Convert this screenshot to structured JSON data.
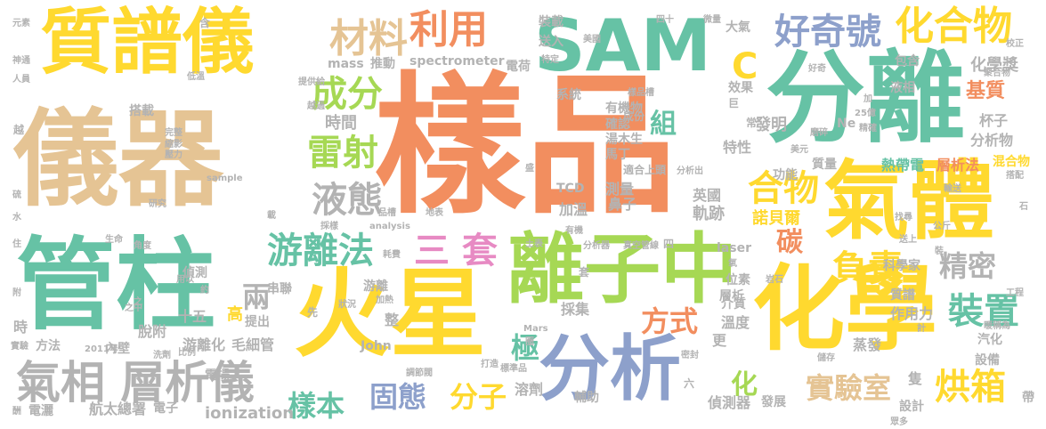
{
  "title": "SAM word cloud",
  "palette": {
    "orange": "#f28e5f",
    "green": "#66c2a5",
    "blue": "#8da0cb",
    "pink": "#e78ac3",
    "lime": "#a6d854",
    "yellow": "#ffd92f",
    "tan": "#e5c494",
    "gray": "#b3b3b3"
  },
  "words": [
    {
      "id": "w1",
      "text": "樣品",
      "color": "#f28e5f"
    },
    {
      "id": "w2",
      "text": "儀器",
      "color": "#e5c494"
    },
    {
      "id": "w3",
      "text": "質譜儀",
      "color": "#ffd92f"
    },
    {
      "id": "w4",
      "text": "分離",
      "color": "#66c2a5"
    },
    {
      "id": "w5",
      "text": "SAM",
      "color": "#66c2a5"
    },
    {
      "id": "w6",
      "text": "管柱",
      "color": "#66c2a5"
    },
    {
      "id": "w7",
      "text": "火星",
      "color": "#ffd92f"
    },
    {
      "id": "w8",
      "text": "化學",
      "color": "#ffd92f"
    },
    {
      "id": "w9",
      "text": "氣體",
      "color": "#ffd92f"
    },
    {
      "id": "w10",
      "text": "離子中",
      "color": "#a6d854"
    },
    {
      "id": "w11",
      "text": "分析",
      "color": "#8da0cb"
    },
    {
      "id": "w12",
      "text": "氣相 層析儀",
      "color": "#b3b3b3"
    },
    {
      "id": "w13",
      "text": "材料",
      "color": "#e5c494"
    },
    {
      "id": "w14",
      "text": "利用",
      "color": "#f28e5f"
    },
    {
      "id": "w15",
      "text": "好奇號",
      "color": "#8da0cb"
    },
    {
      "id": "w16",
      "text": "化合物",
      "color": "#ffd92f"
    },
    {
      "id": "w17",
      "text": "C",
      "color": "#ffd92f"
    },
    {
      "id": "w18",
      "text": "成分",
      "color": "#a6d854"
    },
    {
      "id": "w19",
      "text": "雷射",
      "color": "#a6d854"
    },
    {
      "id": "w20",
      "text": "液態",
      "color": "#b3b3b3"
    },
    {
      "id": "w21",
      "text": "游離法",
      "color": "#66c2a5"
    },
    {
      "id": "w22",
      "text": "三 套",
      "color": "#e78ac3"
    },
    {
      "id": "w23",
      "text": "合物",
      "color": "#ffd92f"
    },
    {
      "id": "w24",
      "text": "組",
      "color": "#66c2a5"
    },
    {
      "id": "w25",
      "text": "碳",
      "color": "#f28e5f"
    },
    {
      "id": "w26",
      "text": "負責",
      "color": "#ffd92f"
    },
    {
      "id": "w27",
      "text": "精密",
      "color": "#b3b3b3"
    },
    {
      "id": "w28",
      "text": "裝置",
      "color": "#66c2a5"
    },
    {
      "id": "w29",
      "text": "烘箱",
      "color": "#ffd92f"
    },
    {
      "id": "w30",
      "text": "實驗室",
      "color": "#e5c494"
    },
    {
      "id": "w31",
      "text": "固態",
      "color": "#8da0cb"
    },
    {
      "id": "w32",
      "text": "分子",
      "color": "#ffd92f"
    },
    {
      "id": "w33",
      "text": "樣本",
      "color": "#66c2a5"
    },
    {
      "id": "w34",
      "text": "方式",
      "color": "#f28e5f"
    },
    {
      "id": "w35",
      "text": "兩",
      "color": "#b3b3b3"
    },
    {
      "id": "w36",
      "text": "極",
      "color": "#66c2a5"
    },
    {
      "id": "w37",
      "text": "化",
      "color": "#a6d854"
    },
    {
      "id": "w38",
      "text": "時間",
      "color": "#b3b3b3"
    },
    {
      "id": "w39",
      "text": "發明",
      "color": "#b3b3b3"
    },
    {
      "id": "w40",
      "text": "基質",
      "color": "#f28e5f"
    },
    {
      "id": "w41",
      "text": "化學獎",
      "color": "#b3b3b3"
    },
    {
      "id": "w42",
      "text": "杯子",
      "color": "#b3b3b3"
    },
    {
      "id": "w43",
      "text": "分析物",
      "color": "#b3b3b3"
    },
    {
      "id": "w44",
      "text": "混合物",
      "color": "#ffd92f"
    },
    {
      "id": "w45",
      "text": "層析法",
      "color": "#f28e5f"
    },
    {
      "id": "w46",
      "text": "熱帶電",
      "color": "#66c2a5"
    },
    {
      "id": "w47",
      "text": "特性",
      "color": "#b3b3b3"
    },
    {
      "id": "w48",
      "text": "功能",
      "color": "#b3b3b3"
    },
    {
      "id": "w49",
      "text": "質量",
      "color": "#b3b3b3"
    },
    {
      "id": "w50",
      "text": "諾貝爾",
      "color": "#ffd92f"
    },
    {
      "id": "w51",
      "text": "軌跡",
      "color": "#b3b3b3"
    },
    {
      "id": "w52",
      "text": "英國",
      "color": "#b3b3b3"
    },
    {
      "id": "w53",
      "text": "鼻子",
      "color": "#b3b3b3"
    },
    {
      "id": "w54",
      "text": "測量",
      "color": "#b3b3b3"
    },
    {
      "id": "w55",
      "text": "加溫",
      "color": "#b3b3b3"
    },
    {
      "id": "w56",
      "text": "TCD",
      "color": "#b3b3b3"
    },
    {
      "id": "w57",
      "text": "溫度",
      "color": "#b3b3b3"
    },
    {
      "id": "w58",
      "text": "介質",
      "color": "#b3b3b3"
    },
    {
      "id": "w59",
      "text": "更",
      "color": "#b3b3b3"
    },
    {
      "id": "w60",
      "text": "採集",
      "color": "#b3b3b3"
    },
    {
      "id": "w61",
      "text": "溶劑",
      "color": "#b3b3b3"
    },
    {
      "id": "w62",
      "text": "偵測器",
      "color": "#b3b3b3"
    },
    {
      "id": "w63",
      "text": "輔助",
      "color": "#b3b3b3"
    },
    {
      "id": "w64",
      "text": "發展",
      "color": "#b3b3b3"
    },
    {
      "id": "w65",
      "text": "設計",
      "color": "#b3b3b3"
    },
    {
      "id": "w66",
      "text": "設備",
      "color": "#b3b3b3"
    },
    {
      "id": "w67",
      "text": "汽化",
      "color": "#b3b3b3"
    },
    {
      "id": "w68",
      "text": "蒸發",
      "color": "#b3b3b3"
    },
    {
      "id": "w69",
      "text": "作用力",
      "color": "#b3b3b3"
    },
    {
      "id": "w70",
      "text": "隻",
      "color": "#b3b3b3"
    },
    {
      "id": "w71",
      "text": "ionization",
      "color": "#b3b3b3"
    },
    {
      "id": "w72",
      "text": "電場",
      "color": "#b3b3b3"
    },
    {
      "id": "w73",
      "text": "航太總署",
      "color": "#b3b3b3"
    },
    {
      "id": "w74",
      "text": "電子",
      "color": "#b3b3b3"
    },
    {
      "id": "w75",
      "text": "電灑",
      "color": "#b3b3b3"
    },
    {
      "id": "w76",
      "text": "方法",
      "color": "#b3b3b3"
    },
    {
      "id": "w77",
      "text": "游離化",
      "color": "#b3b3b3"
    },
    {
      "id": "w78",
      "text": "毛細管",
      "color": "#b3b3b3"
    },
    {
      "id": "w79",
      "text": "脫附",
      "color": "#b3b3b3"
    },
    {
      "id": "w80",
      "text": "十五",
      "color": "#b3b3b3"
    },
    {
      "id": "w81",
      "text": "高",
      "color": "#ffd92f"
    },
    {
      "id": "w82",
      "text": "提出",
      "color": "#b3b3b3"
    },
    {
      "id": "w83",
      "text": "整",
      "color": "#b3b3b3"
    },
    {
      "id": "w84",
      "text": "John",
      "color": "#b3b3b3"
    },
    {
      "id": "w85",
      "text": "串聯",
      "color": "#b3b3b3"
    },
    {
      "id": "w86",
      "text": "游離",
      "color": "#b3b3b3"
    },
    {
      "id": "w87",
      "text": "偵測",
      "color": "#b3b3b3"
    },
    {
      "id": "w88",
      "text": "時",
      "color": "#b3b3b3"
    },
    {
      "id": "w89",
      "text": "內壁",
      "color": "#b3b3b3"
    },
    {
      "id": "w90",
      "text": "先",
      "color": "#b3b3b3"
    },
    {
      "id": "w91",
      "text": "spectrometer",
      "color": "#b3b3b3"
    },
    {
      "id": "w92",
      "text": "mass",
      "color": "#b3b3b3"
    },
    {
      "id": "w93",
      "text": "推動",
      "color": "#b3b3b3"
    },
    {
      "id": "w94",
      "text": "電荷",
      "color": "#b3b3b3"
    },
    {
      "id": "w95",
      "text": "裝載",
      "color": "#b3b3b3"
    },
    {
      "id": "w96",
      "text": "送入",
      "color": "#b3b3b3"
    },
    {
      "id": "w97",
      "text": "大氣",
      "color": "#b3b3b3"
    },
    {
      "id": "w98",
      "text": "系統",
      "color": "#b3b3b3"
    },
    {
      "id": "w99",
      "text": "有機物",
      "color": "#b3b3b3"
    },
    {
      "id": "w100",
      "text": "確認",
      "color": "#b3b3b3"
    },
    {
      "id": "w101",
      "text": "湯木生",
      "color": "#b3b3b3"
    },
    {
      "id": "w102",
      "text": "馬丁",
      "color": "#b3b3b3"
    },
    {
      "id": "w103",
      "text": "效果",
      "color": "#b3b3b3"
    },
    {
      "id": "w104",
      "text": "常",
      "color": "#b3b3b3"
    },
    {
      "id": "w105",
      "text": "巨",
      "color": "#b3b3b3"
    },
    {
      "id": "w106",
      "text": "液相",
      "color": "#b3b3b3"
    },
    {
      "id": "w107",
      "text": "Ne",
      "color": "#b3b3b3"
    },
    {
      "id": "w108",
      "text": "包含",
      "color": "#b3b3b3"
    },
    {
      "id": "w109",
      "text": "搭載",
      "color": "#b3b3b3"
    },
    {
      "id": "w110",
      "text": "laser",
      "color": "#b3b3b3"
    },
    {
      "id": "w111",
      "text": "位素",
      "color": "#b3b3b3"
    },
    {
      "id": "w112",
      "text": "科學家",
      "color": "#b3b3b3"
    },
    {
      "id": "w113",
      "text": "質譜",
      "color": "#b3b3b3"
    },
    {
      "id": "w114",
      "text": "層析",
      "color": "#b3b3b3"
    },
    {
      "id": "w115",
      "text": "適合上頭",
      "color": "#b3b3b3"
    },
    {
      "id": "w116",
      "text": "成份",
      "color": "#b3b3b3"
    },
    {
      "id": "w117",
      "text": "分析出",
      "color": "#b3b3b3"
    },
    {
      "id": "w118",
      "text": "樣品槽",
      "color": "#b3b3b3"
    },
    {
      "id": "w119",
      "text": "元素",
      "color": "#b3b3b3"
    },
    {
      "id": "w120",
      "text": "神通",
      "color": "#b3b3b3"
    },
    {
      "id": "w121",
      "text": "人員",
      "color": "#b3b3b3"
    },
    {
      "id": "w122",
      "text": "越",
      "color": "#b3b3b3"
    },
    {
      "id": "w123",
      "text": "低溫",
      "color": "#b3b3b3"
    },
    {
      "id": "w124",
      "text": "含",
      "color": "#b3b3b3"
    },
    {
      "id": "w125",
      "text": "提供給",
      "color": "#b3b3b3"
    },
    {
      "id": "w126",
      "text": "美國",
      "color": "#b3b3b3"
    },
    {
      "id": "w127",
      "text": "特定",
      "color": "#b3b3b3"
    },
    {
      "id": "w128",
      "text": "四十",
      "color": "#b3b3b3"
    },
    {
      "id": "w129",
      "text": "微量",
      "color": "#b3b3b3"
    },
    {
      "id": "w130",
      "text": "校正",
      "color": "#b3b3b3"
    },
    {
      "id": "w131",
      "text": "聚合物",
      "color": "#b3b3b3"
    },
    {
      "id": "w132",
      "text": "好奇",
      "color": "#b3b3b3"
    },
    {
      "id": "w133",
      "text": "加",
      "color": "#b3b3b3"
    },
    {
      "id": "w134",
      "text": "25億",
      "color": "#b3b3b3"
    },
    {
      "id": "w135",
      "text": "磨碎",
      "color": "#b3b3b3"
    },
    {
      "id": "w136",
      "text": "精確",
      "color": "#b3b3b3"
    },
    {
      "id": "w137",
      "text": "美元",
      "color": "#b3b3b3"
    },
    {
      "id": "w138",
      "text": "輸送",
      "color": "#b3b3b3"
    },
    {
      "id": "w139",
      "text": "搭配",
      "color": "#b3b3b3"
    },
    {
      "id": "w140",
      "text": "石",
      "color": "#b3b3b3"
    },
    {
      "id": "w141",
      "text": "公斤",
      "color": "#b3b3b3"
    },
    {
      "id": "w142",
      "text": "找尋",
      "color": "#b3b3b3"
    },
    {
      "id": "w143",
      "text": "送上",
      "color": "#b3b3b3"
    },
    {
      "id": "w144",
      "text": "裝",
      "color": "#b3b3b3"
    },
    {
      "id": "w145",
      "text": "氧",
      "color": "#b3b3b3"
    },
    {
      "id": "w146",
      "text": "岩石",
      "color": "#b3b3b3"
    },
    {
      "id": "w147",
      "text": "工程",
      "color": "#b3b3b3"
    },
    {
      "id": "w148",
      "text": "計",
      "color": "#b3b3b3"
    },
    {
      "id": "w149",
      "text": "暖稱為",
      "color": "#b3b3b3"
    },
    {
      "id": "w150",
      "text": "儲存",
      "color": "#b3b3b3"
    },
    {
      "id": "w151",
      "text": "帶",
      "color": "#b3b3b3"
    },
    {
      "id": "w152",
      "text": "密封",
      "color": "#b3b3b3"
    },
    {
      "id": "w153",
      "text": "六",
      "color": "#b3b3b3"
    },
    {
      "id": "w154",
      "text": "打造",
      "color": "#b3b3b3"
    },
    {
      "id": "w155",
      "text": "Mars",
      "color": "#b3b3b3"
    },
    {
      "id": "w156",
      "text": "圈",
      "color": "#b3b3b3"
    },
    {
      "id": "w157",
      "text": "標準品",
      "color": "#b3b3b3"
    },
    {
      "id": "w158",
      "text": "調節閥",
      "color": "#b3b3b3"
    },
    {
      "id": "w159",
      "text": "眾多",
      "color": "#b3b3b3"
    },
    {
      "id": "w160",
      "text": "酬",
      "color": "#b3b3b3"
    },
    {
      "id": "w161",
      "text": "實驗",
      "color": "#b3b3b3"
    },
    {
      "id": "w162",
      "text": "2011年",
      "color": "#b3b3b3"
    },
    {
      "id": "w163",
      "text": "洗劑",
      "color": "#b3b3b3"
    },
    {
      "id": "w164",
      "text": "比例",
      "color": "#b3b3b3"
    },
    {
      "id": "w165",
      "text": "狀況",
      "color": "#b3b3b3"
    },
    {
      "id": "w166",
      "text": "加熱",
      "color": "#b3b3b3"
    },
    {
      "id": "w167",
      "text": "之中",
      "color": "#b3b3b3"
    },
    {
      "id": "w168",
      "text": "用以",
      "color": "#b3b3b3"
    },
    {
      "id": "w169",
      "text": "約",
      "color": "#b3b3b3"
    },
    {
      "id": "w170",
      "text": "附",
      "color": "#b3b3b3"
    },
    {
      "id": "w171",
      "text": "住",
      "color": "#b3b3b3"
    },
    {
      "id": "w172",
      "text": "生命",
      "color": "#b3b3b3"
    },
    {
      "id": "w173",
      "text": "角度",
      "color": "#b3b3b3"
    },
    {
      "id": "w174",
      "text": "水",
      "color": "#b3b3b3"
    },
    {
      "id": "w175",
      "text": "硫",
      "color": "#b3b3b3"
    },
    {
      "id": "w176",
      "text": "研究",
      "color": "#b3b3b3"
    },
    {
      "id": "w177",
      "text": "sample",
      "color": "#b3b3b3"
    },
    {
      "id": "w178",
      "text": "完整",
      "color": "#b3b3b3"
    },
    {
      "id": "w179",
      "text": "縮影",
      "color": "#b3b3b3"
    },
    {
      "id": "w180",
      "text": "壓力",
      "color": "#b3b3b3"
    },
    {
      "id": "w181",
      "text": "載",
      "color": "#b3b3b3"
    },
    {
      "id": "w182",
      "text": "品槽",
      "color": "#b3b3b3"
    },
    {
      "id": "w183",
      "text": "地表",
      "color": "#b3b3b3"
    },
    {
      "id": "w184",
      "text": "analysis",
      "color": "#b3b3b3"
    },
    {
      "id": "w185",
      "text": "採樣",
      "color": "#b3b3b3"
    },
    {
      "id": "w186",
      "text": "耗費",
      "color": "#b3b3b3"
    },
    {
      "id": "w187",
      "text": "有機",
      "color": "#b3b3b3"
    },
    {
      "id": "w188",
      "text": "分析器",
      "color": "#b3b3b3"
    },
    {
      "id": "w189",
      "text": "真空管線",
      "color": "#b3b3b3"
    },
    {
      "id": "w190",
      "text": "土表",
      "color": "#b3b3b3"
    },
    {
      "id": "w191",
      "text": "四",
      "color": "#b3b3b3"
    },
    {
      "id": "w192",
      "text": "套",
      "color": "#b3b3b3"
    },
    {
      "id": "w193",
      "text": "越過",
      "color": "#b3b3b3"
    },
    {
      "id": "w194",
      "text": "盛",
      "color": "#b3b3b3"
    },
    {
      "id": "w195",
      "text": "之",
      "color": "#b3b3b3"
    }
  ]
}
